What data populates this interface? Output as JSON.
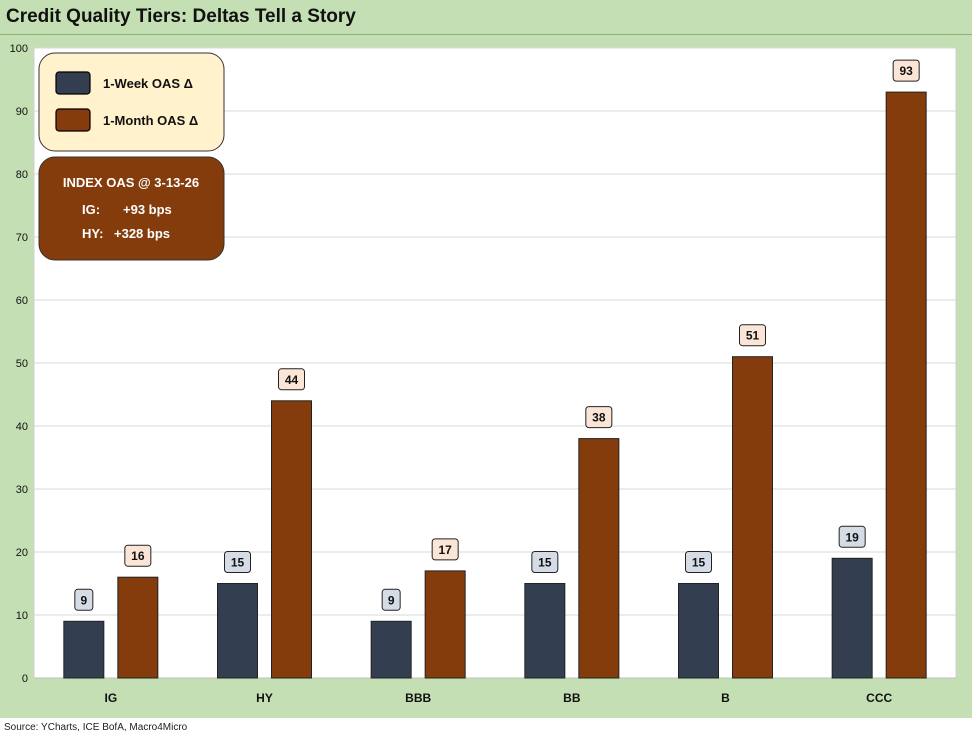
{
  "title": "Credit Quality Tiers: Deltas Tell a Story",
  "source": "Source: YCharts, ICE BofA, Macro4Micro",
  "colors": {
    "week": "#333f50",
    "month": "#843c0c",
    "frame": "#c5dfb4",
    "week_label_bg": "#d6dce5",
    "month_label_bg": "#fbe5d6",
    "legend_bg": "#fff2cc"
  },
  "legend": {
    "week_label": "1-Week OAS Δ",
    "month_label": "1-Month OAS Δ"
  },
  "info_box": {
    "heading": "INDEX OAS @ 3-13-26",
    "ig_label": "IG:",
    "ig_value": "+93 bps",
    "hy_label": "HY:",
    "hy_value": "+328 bps"
  },
  "chart_data": {
    "type": "bar",
    "title": "Credit Quality Tiers: Deltas Tell a Story",
    "xlabel": "",
    "ylabel": "",
    "ylim": [
      0,
      100
    ],
    "yticks": [
      0,
      10,
      20,
      30,
      40,
      50,
      60,
      70,
      80,
      90,
      100
    ],
    "grid": true,
    "legend_position": "top-left",
    "categories": [
      "IG",
      "HY",
      "BBB",
      "BB",
      "B",
      "CCC"
    ],
    "series": [
      {
        "name": "1-Week OAS Δ",
        "values": [
          9,
          15,
          9,
          15,
          15,
          19
        ]
      },
      {
        "name": "1-Month OAS Δ",
        "values": [
          16,
          44,
          17,
          38,
          51,
          93
        ]
      }
    ]
  }
}
